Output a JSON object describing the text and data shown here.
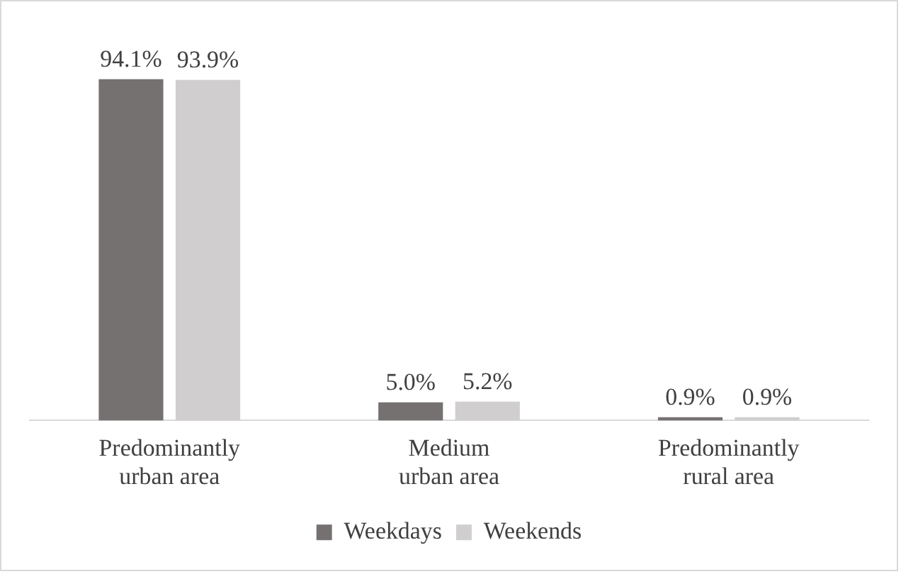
{
  "chart_data": {
    "type": "bar",
    "categories": [
      "Predominantly urban area",
      "Medium urban area",
      "Predominantly rural area"
    ],
    "series": [
      {
        "name": "Weekdays",
        "color": "#767171",
        "values": [
          94.1,
          5.0,
          0.9
        ],
        "value_labels": [
          "94.1%",
          "5.0%",
          "0.9%"
        ]
      },
      {
        "name": "Weekends",
        "color": "#d0cece",
        "values": [
          93.9,
          5.2,
          0.9
        ],
        "value_labels": [
          "93.9%",
          "5.2%",
          "0.9%"
        ]
      }
    ],
    "legend": "bottom",
    "grid": false
  }
}
